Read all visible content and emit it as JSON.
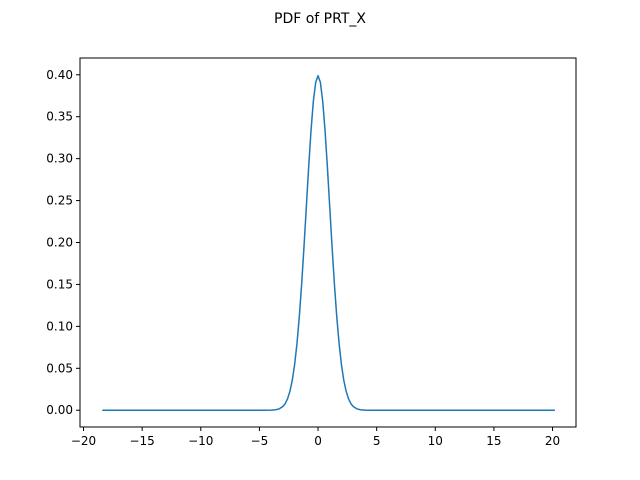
{
  "chart_data": {
    "type": "line",
    "title": "PDF of PRT_X",
    "xlabel": "",
    "ylabel": "",
    "xlim": [
      -20.3,
      22.0
    ],
    "ylim": [
      -0.02,
      0.42
    ],
    "grid": false,
    "legend": "none",
    "x_ticks": [
      -20,
      -15,
      -10,
      -5,
      0,
      5,
      10,
      15,
      20
    ],
    "x_tick_labels": [
      "−20",
      "−15",
      "−10",
      "−5",
      "0",
      "5",
      "10",
      "15",
      "20"
    ],
    "y_ticks": [
      0.0,
      0.05,
      0.1,
      0.15,
      0.2,
      0.25,
      0.3,
      0.35,
      0.4
    ],
    "y_tick_labels": [
      "0.00",
      "0.05",
      "0.10",
      "0.15",
      "0.20",
      "0.25",
      "0.30",
      "0.35",
      "0.40"
    ],
    "series": [
      {
        "color": "#1f77b4",
        "x": [
          -18.4,
          -10,
          -6,
          -5,
          -4.5,
          -4,
          -3.6,
          -3.3,
          -3,
          -2.8,
          -2.6,
          -2.4,
          -2.2,
          -2,
          -1.8,
          -1.6,
          -1.4,
          -1.2,
          -1,
          -0.8,
          -0.6,
          -0.4,
          -0.2,
          0,
          0.2,
          0.4,
          0.6,
          0.8,
          1,
          1.2,
          1.4,
          1.6,
          1.8,
          2,
          2.2,
          2.4,
          2.6,
          2.8,
          3,
          3.3,
          3.6,
          4,
          4.5,
          5,
          6,
          10,
          15,
          20.2
        ],
        "y": [
          0.0,
          0.0,
          0.0,
          0.0,
          2e-05,
          0.00013,
          0.0006,
          0.0017,
          0.0044,
          0.0079,
          0.0136,
          0.0224,
          0.0355,
          0.054,
          0.079,
          0.1109,
          0.1497,
          0.1942,
          0.242,
          0.2897,
          0.3332,
          0.3683,
          0.391,
          0.3989,
          0.391,
          0.3683,
          0.3332,
          0.2897,
          0.242,
          0.1942,
          0.1497,
          0.1109,
          0.079,
          0.054,
          0.0355,
          0.0224,
          0.0136,
          0.0079,
          0.0044,
          0.0017,
          0.0006,
          0.00013,
          2e-05,
          0.0,
          0.0,
          0.0,
          0.0,
          0.0
        ]
      }
    ]
  }
}
